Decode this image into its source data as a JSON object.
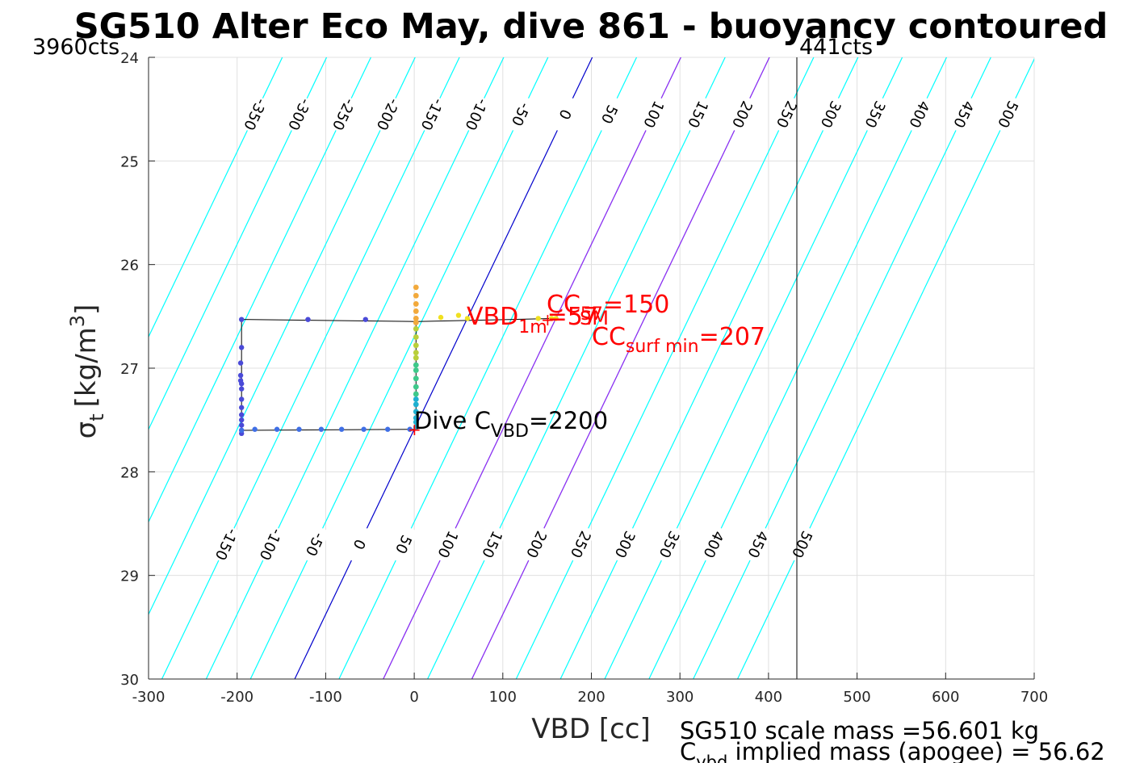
{
  "chart_data": {
    "type": "scatter",
    "title": "SG510 Alter Eco May, dive 861 - buoyancy contoured",
    "xlabel": "VBD [cc]",
    "ylabel_main": "σ",
    "ylabel_sub": "t",
    "ylabel_unit": "[kg/m",
    "ylabel_sup": "3",
    "ylabel_close": "]",
    "xlim": [
      -300,
      700
    ],
    "ylim": [
      24,
      30
    ],
    "y_reversed": true,
    "grid": true,
    "xticks": [
      "-300",
      "-200",
      "-100",
      "0",
      "100",
      "200",
      "300",
      "400",
      "500",
      "600",
      "700"
    ],
    "yticks": [
      "24",
      "25",
      "26",
      "27",
      "28",
      "29",
      "30"
    ],
    "corner_left": "3960cts",
    "corner_right": "441cts",
    "counts_line_x": 432,
    "contour_slope_cc_per_sigma": 56,
    "contours": {
      "cyan_levels": [
        -350,
        -300,
        -250,
        -200,
        -150,
        -100,
        -50,
        50,
        100,
        150,
        200,
        250,
        300,
        350,
        400,
        450,
        500
      ],
      "blue_level": 0,
      "magenta_levels": [
        100,
        200
      ],
      "top_labels": [
        "-350",
        "-300",
        "-250",
        "-200",
        "-150",
        "-100",
        "-50",
        "0",
        "50",
        "100",
        "150",
        "200",
        "250",
        "300",
        "350",
        "400",
        "450",
        "500"
      ],
      "top_label_values": [
        -350,
        -300,
        -250,
        -200,
        -150,
        -100,
        -50,
        0,
        50,
        100,
        150,
        200,
        250,
        300,
        350,
        400,
        450,
        500
      ],
      "bottom_labels": [
        "-150",
        "-100",
        "-50",
        "0",
        "50",
        "100",
        "150",
        "200",
        "250",
        "300",
        "350",
        "400",
        "450",
        "500"
      ],
      "bottom_label_values": [
        -150,
        -100,
        -50,
        0,
        50,
        100,
        150,
        200,
        250,
        300,
        350,
        400,
        450,
        500
      ]
    },
    "series": [
      {
        "points_dive_flat": [
          [
            -195,
            27.6
          ],
          [
            -180,
            27.59
          ],
          [
            -155,
            27.59
          ],
          [
            -130,
            27.59
          ],
          [
            -105,
            27.59
          ],
          [
            -82,
            27.59
          ],
          [
            -57,
            27.59
          ],
          [
            -30,
            27.59
          ],
          [
            -5,
            27.59
          ]
        ],
        "points_dive_vertical": [
          [
            -195,
            26.53
          ],
          [
            -195,
            26.8
          ],
          [
            -196,
            26.95
          ],
          [
            -196,
            27.07
          ],
          [
            -196,
            27.12
          ],
          [
            -195,
            27.15
          ],
          [
            -195,
            27.2
          ],
          [
            -195,
            27.3
          ],
          [
            -195,
            27.38
          ],
          [
            -195,
            27.45
          ],
          [
            -195,
            27.5
          ],
          [
            -195,
            27.55
          ],
          [
            -195,
            27.6
          ],
          [
            -195,
            27.63
          ]
        ],
        "points_climb_flat": [
          [
            -120,
            26.53
          ],
          [
            -55,
            26.53
          ]
        ],
        "points_neutral": [
          [
            2,
            26.22
          ],
          [
            2,
            26.3
          ],
          [
            2,
            26.38
          ],
          [
            2,
            26.45
          ],
          [
            2,
            26.52
          ],
          [
            2,
            26.56
          ],
          [
            2,
            26.62
          ],
          [
            2,
            26.7
          ],
          [
            2,
            26.78
          ],
          [
            2,
            26.85
          ],
          [
            2,
            26.9
          ],
          [
            2,
            26.97
          ],
          [
            2,
            27.02
          ],
          [
            2,
            27.1
          ],
          [
            2,
            27.18
          ],
          [
            2,
            27.25
          ],
          [
            2,
            27.3
          ],
          [
            2,
            27.35
          ],
          [
            2,
            27.42
          ],
          [
            2,
            27.48
          ],
          [
            2,
            27.52
          ],
          [
            2,
            27.57
          ]
        ],
        "points_surface": [
          [
            30,
            26.51
          ],
          [
            50,
            26.49
          ],
          [
            60,
            26.52
          ],
          [
            140,
            26.52
          ],
          [
            155,
            26.52
          ],
          [
            160,
            26.52
          ]
        ]
      }
    ],
    "annotations": {
      "cc_main": "CC",
      "cc_sub": "57",
      "cc_val": "=150",
      "vbd1m_main": "VBD",
      "vbd1m_sub": "1m",
      "vbd1m_val": "=57",
      "vbd1m_tail": "SM",
      "ccsurf_main": "CC",
      "ccsurf_sub": "surf min",
      "ccsurf_val": "=207",
      "dive_main": "Dive C",
      "dive_sub": "VBD",
      "dive_val": "=2200",
      "footer_line1": "SG510 scale mass =56.601 kg",
      "footer_line2_main": "C",
      "footer_line2_sub": "vbd",
      "footer_line2_rest": " implied mass (apogee) = 56.62"
    },
    "colors": {
      "cyan": "#00ffff",
      "blue": "#0000cc",
      "magenta": "#a020f0",
      "red": "#ff0000",
      "grid": "#e0e0e0",
      "dive": "#4a4ad8",
      "dive_flat": "#3f6fe6",
      "neutral_top": "#f2a93b",
      "neutral_mid": "#b9cf3a",
      "neutral_low": "#3ec98a",
      "neutral_bottom": "#1eb0d0",
      "surface": "#f0e020"
    }
  }
}
